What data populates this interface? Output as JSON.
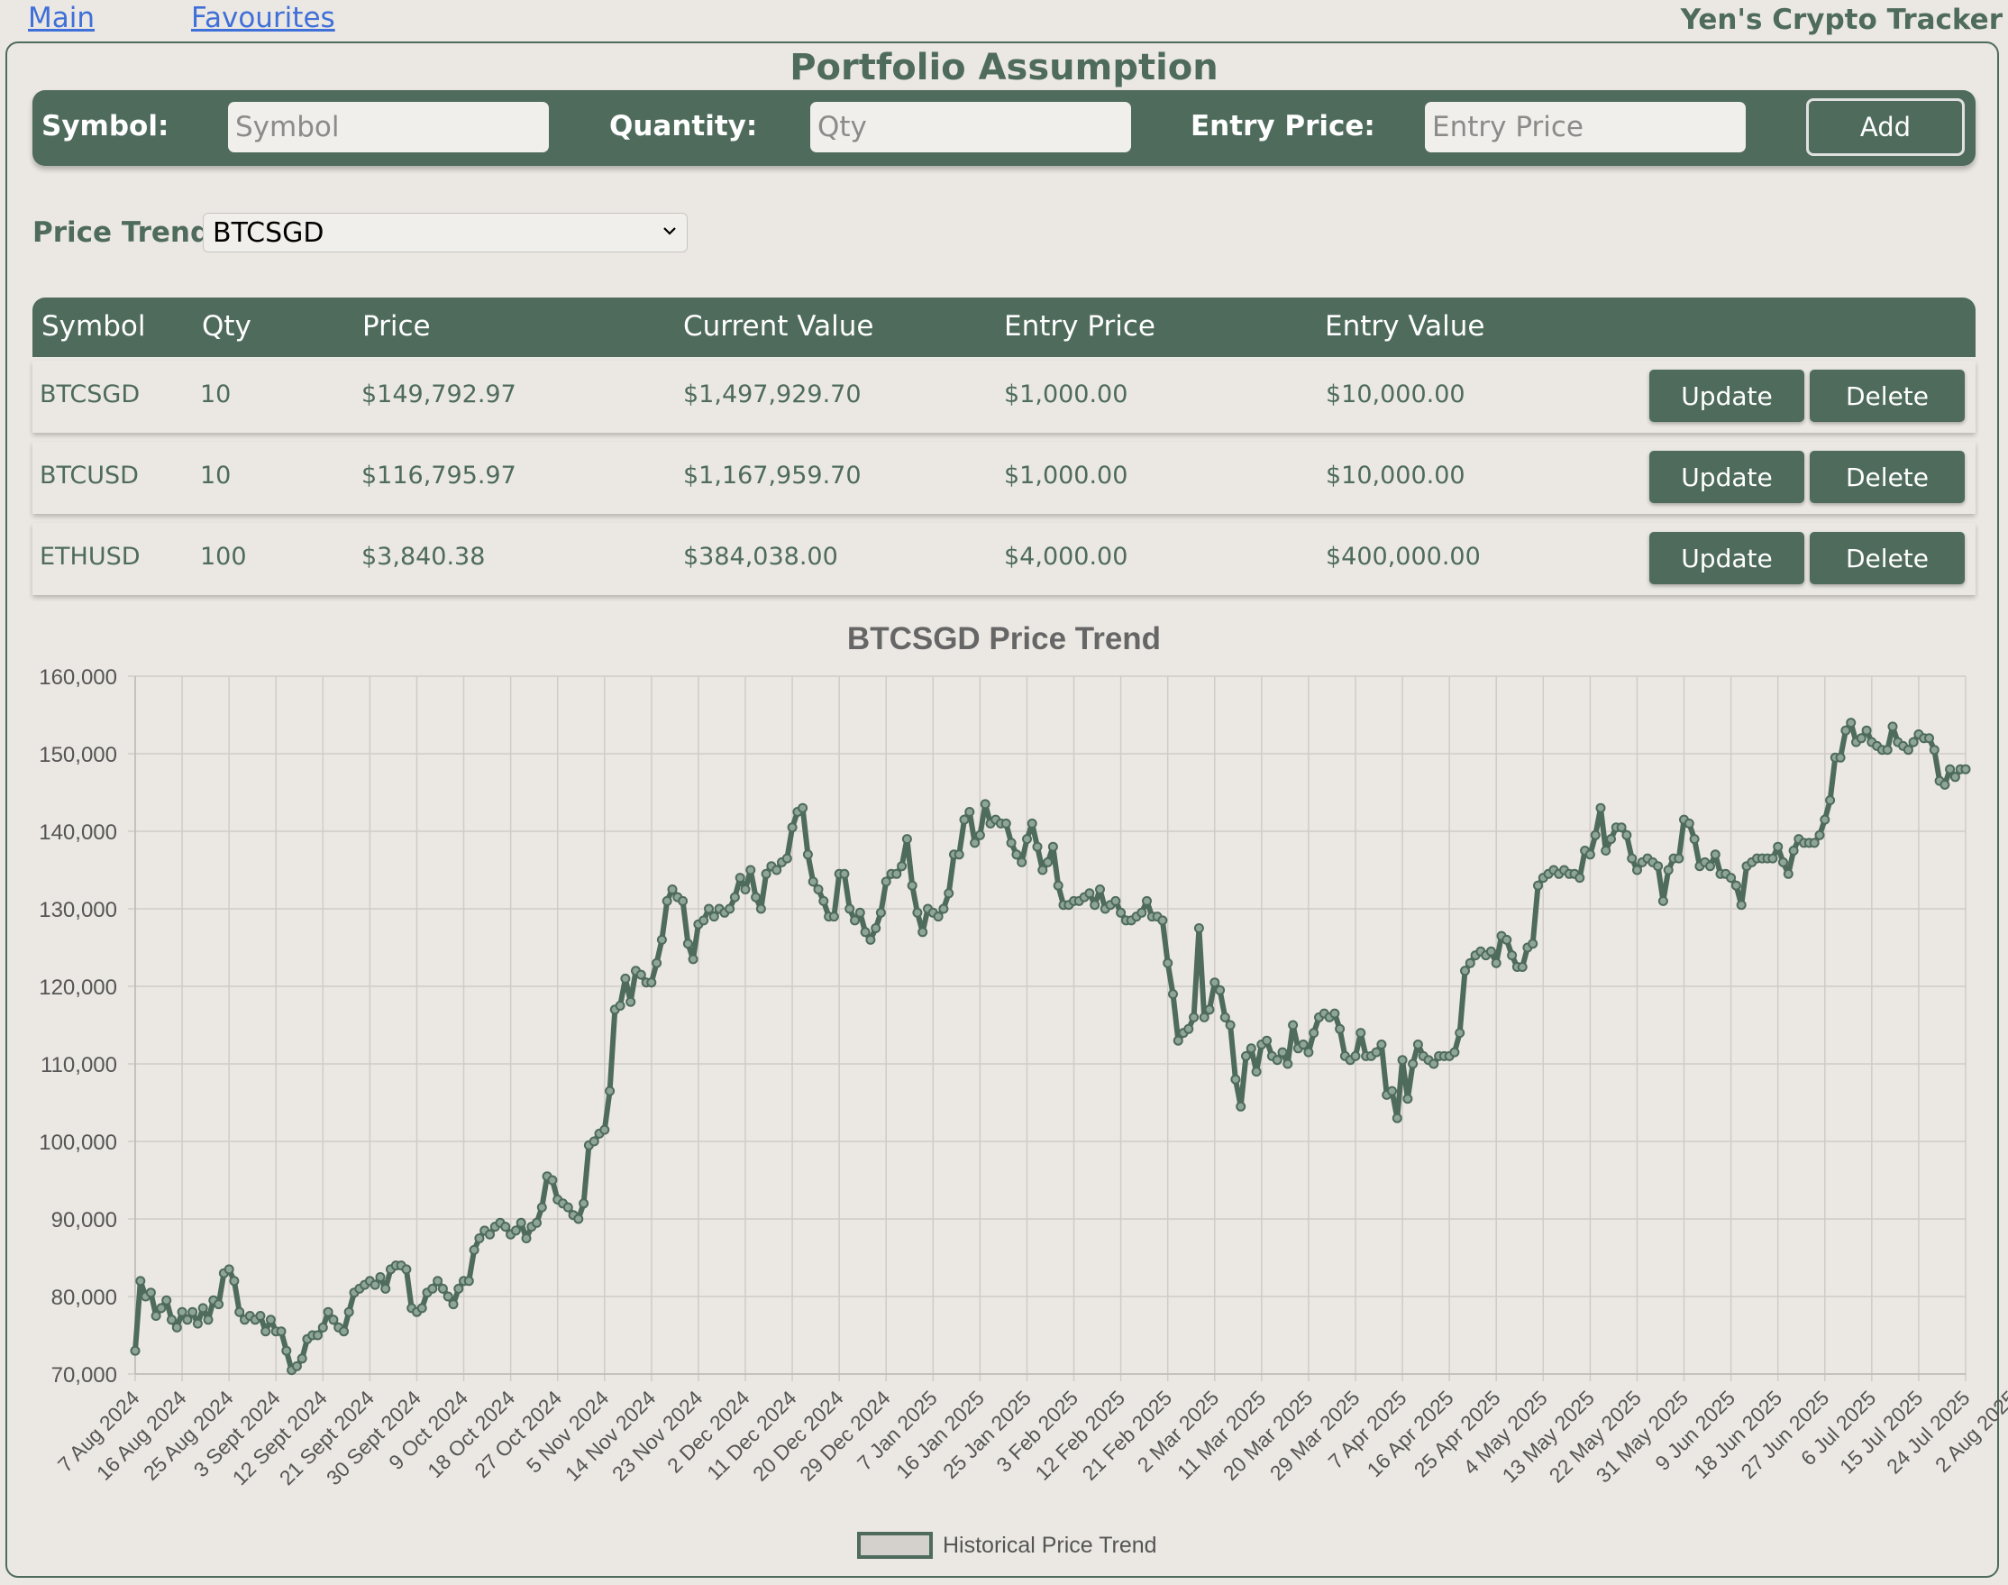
{
  "nav": {
    "main_link": "Main",
    "favourites_link": "Favourites",
    "brand": "Yen's Crypto Tracker"
  },
  "page_title": "Portfolio Assumption",
  "add_form": {
    "symbol_label": "Symbol:",
    "symbol_placeholder": "Symbol",
    "quantity_label": "Quantity:",
    "quantity_placeholder": "Qty",
    "entry_price_label": "Entry Price:",
    "entry_price_placeholder": "Entry Price",
    "add_button": "Add"
  },
  "price_trend": {
    "label": "Price Trend",
    "selected": "BTCSGD"
  },
  "table": {
    "headers": [
      "Symbol",
      "Qty",
      "Price",
      "Current Value",
      "Entry Price",
      "Entry Value"
    ],
    "rows": [
      {
        "symbol": "BTCSGD",
        "qty": "10",
        "price": "$149,792.97",
        "current_value": "$1,497,929.70",
        "entry_price": "$1,000.00",
        "entry_value": "$10,000.00",
        "update": "Update",
        "delete": "Delete"
      },
      {
        "symbol": "BTCUSD",
        "qty": "10",
        "price": "$116,795.97",
        "current_value": "$1,167,959.70",
        "entry_price": "$1,000.00",
        "entry_value": "$10,000.00",
        "update": "Update",
        "delete": "Delete"
      },
      {
        "symbol": "ETHUSD",
        "qty": "100",
        "price": "$3,840.38",
        "current_value": "$384,038.00",
        "entry_price": "$4,000.00",
        "entry_value": "$400,000.00",
        "update": "Update",
        "delete": "Delete"
      }
    ]
  },
  "colors": {
    "accent": "#4e6b5c",
    "background": "#ebe8e3",
    "link": "#3f6fd8"
  },
  "chart_data": {
    "type": "line",
    "title": "BTCSGD Price Trend",
    "legend": "Historical Price Trend",
    "legend_position": "bottom",
    "grid": true,
    "ylim": [
      70000,
      160000
    ],
    "y_ticks": [
      "70,000",
      "80,000",
      "90,000",
      "100,000",
      "110,000",
      "120,000",
      "130,000",
      "140,000",
      "150,000",
      "160,000"
    ],
    "x_tick_labels": [
      "7 Aug 2024",
      "16 Aug 2024",
      "25 Aug 2024",
      "3 Sept 2024",
      "12 Sept 2024",
      "21 Sept 2024",
      "30 Sept 2024",
      "9 Oct 2024",
      "18 Oct 2024",
      "27 Oct 2024",
      "5 Nov 2024",
      "14 Nov 2024",
      "23 Nov 2024",
      "2 Dec 2024",
      "11 Dec 2024",
      "20 Dec 2024",
      "29 Dec 2024",
      "7 Jan 2025",
      "16 Jan 2025",
      "25 Jan 2025",
      "3 Feb 2025",
      "12 Feb 2025",
      "21 Feb 2025",
      "2 Mar 2025",
      "11 Mar 2025",
      "20 Mar 2025",
      "29 Mar 2025",
      "7 Apr 2025",
      "16 Apr 2025",
      "25 Apr 2025",
      "4 May 2025",
      "13 May 2025",
      "22 May 2025",
      "31 May 2025",
      "9 Jun 2025",
      "18 Jun 2025",
      "27 Jun 2025",
      "6 Jul 2025",
      "15 Jul 2025",
      "24 Jul 2025",
      "2 Aug 2025"
    ],
    "series": [
      {
        "name": "Historical Price Trend",
        "values": [
          73000,
          82000,
          80000,
          80500,
          77500,
          78500,
          79500,
          77000,
          76000,
          78000,
          77000,
          78000,
          76500,
          78500,
          77000,
          79500,
          79000,
          83000,
          83500,
          82000,
          78000,
          77000,
          77500,
          77000,
          77500,
          75500,
          77000,
          75500,
          75500,
          73000,
          70500,
          71000,
          72000,
          74500,
          75000,
          75000,
          76000,
          78000,
          77000,
          76000,
          75500,
          78000,
          80500,
          81000,
          81500,
          82000,
          81500,
          82500,
          81000,
          83500,
          84000,
          84000,
          83500,
          78500,
          78000,
          78500,
          80500,
          81000,
          82000,
          81000,
          80000,
          79000,
          81000,
          82000,
          82000,
          86000,
          87500,
          88500,
          88000,
          89000,
          89500,
          89000,
          88000,
          88500,
          89500,
          87500,
          89000,
          89500,
          91500,
          95500,
          95000,
          92500,
          92000,
          91500,
          90500,
          90000,
          92000,
          99500,
          100000,
          101000,
          101500,
          106500,
          117000,
          117500,
          121000,
          118000,
          122000,
          121500,
          120500,
          120500,
          123000,
          126000,
          131000,
          132500,
          131500,
          131000,
          125500,
          123500,
          128000,
          128500,
          130000,
          129000,
          130000,
          129500,
          130000,
          131500,
          134000,
          132500,
          135000,
          131500,
          130000,
          134500,
          135500,
          135000,
          136000,
          136500,
          140500,
          142500,
          143000,
          137000,
          133500,
          132500,
          131000,
          129000,
          129000,
          134500,
          134500,
          130000,
          128500,
          129500,
          127000,
          126000,
          127500,
          129500,
          133500,
          134500,
          134500,
          135500,
          139000,
          133000,
          129500,
          127000,
          130000,
          129500,
          129000,
          130000,
          132000,
          137000,
          137000,
          141500,
          142500,
          138500,
          139500,
          143500,
          141000,
          141500,
          141000,
          141000,
          138500,
          137000,
          136000,
          139000,
          141000,
          138000,
          135000,
          136000,
          138000,
          133000,
          130500,
          130500,
          131000,
          131000,
          131500,
          132000,
          130500,
          132500,
          130000,
          130500,
          131000,
          129500,
          128500,
          128500,
          129000,
          129500,
          131000,
          129000,
          129000,
          128500,
          123000,
          119000,
          113000,
          114000,
          114500,
          116000,
          127500,
          116000,
          117000,
          120500,
          119500,
          116000,
          115000,
          108000,
          104500,
          111000,
          112000,
          109000,
          112500,
          113000,
          111000,
          110500,
          111500,
          110000,
          115000,
          112000,
          112500,
          111500,
          114000,
          116000,
          116500,
          116000,
          116500,
          114500,
          111000,
          110500,
          111000,
          114000,
          111000,
          111000,
          111500,
          112500,
          106000,
          106500,
          103000,
          110500,
          105500,
          110000,
          112500,
          111000,
          110500,
          110000,
          111000,
          111000,
          111000,
          111500,
          114000,
          122000,
          123000,
          124000,
          124500,
          124000,
          124500,
          123000,
          126500,
          126000,
          124000,
          122500,
          122500,
          125000,
          125500,
          133000,
          134000,
          134500,
          135000,
          134500,
          135000,
          134500,
          134500,
          134000,
          137500,
          137000,
          139500,
          143000,
          137500,
          139000,
          140500,
          140500,
          139500,
          136500,
          135000,
          136000,
          136500,
          136000,
          135500,
          131000,
          135000,
          136500,
          136500,
          141500,
          141000,
          139000,
          135500,
          136000,
          135500,
          137000,
          134500,
          134500,
          134000,
          133000,
          130500,
          135500,
          136000,
          136500,
          136500,
          136500,
          136500,
          138000,
          136000,
          134500,
          137500,
          139000,
          138500,
          138500,
          138500,
          139500,
          141500,
          144000,
          149500,
          149500,
          153000,
          154000,
          151500,
          152000,
          153000,
          151500,
          151000,
          150500,
          150500,
          153500,
          151500,
          151000,
          150500,
          151500,
          152500,
          152000,
          152000,
          150500,
          146500,
          146000,
          148000,
          147000,
          148000,
          148000
        ]
      }
    ]
  }
}
